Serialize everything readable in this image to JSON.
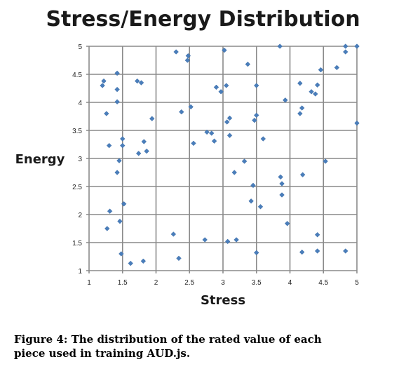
{
  "chart_data": {
    "type": "scatter",
    "title": "Stress/Energy Distribution",
    "xlabel": "Stress",
    "ylabel": "Energy",
    "xlim": [
      1,
      5
    ],
    "ylim": [
      1,
      5
    ],
    "x_ticks": [
      "1",
      "1.5",
      "2",
      "2.5",
      "3",
      "3.5",
      "4",
      "4.5",
      "5"
    ],
    "y_ticks": [
      "1",
      "1.5",
      "2",
      "2.5",
      "3",
      "3.5",
      "4",
      "4.5",
      "5"
    ],
    "grid": true,
    "legend": false,
    "marker_color": "#4a7ebb",
    "points": [
      [
        2.3,
        4.9
      ],
      [
        2.48,
        4.83
      ],
      [
        2.47,
        4.75
      ],
      [
        3.02,
        4.93
      ],
      [
        3.85,
        5.0
      ],
      [
        4.83,
        5.0
      ],
      [
        5.0,
        5.0
      ],
      [
        4.83,
        4.9
      ],
      [
        3.37,
        4.68
      ],
      [
        4.7,
        4.62
      ],
      [
        4.46,
        4.58
      ],
      [
        1.2,
        4.3
      ],
      [
        1.22,
        4.38
      ],
      [
        1.42,
        4.52
      ],
      [
        1.72,
        4.38
      ],
      [
        1.78,
        4.35
      ],
      [
        1.42,
        4.23
      ],
      [
        2.9,
        4.27
      ],
      [
        2.97,
        4.19
      ],
      [
        3.05,
        4.3
      ],
      [
        3.5,
        4.3
      ],
      [
        4.15,
        4.34
      ],
      [
        4.41,
        4.31
      ],
      [
        4.32,
        4.19
      ],
      [
        4.38,
        4.15
      ],
      [
        1.42,
        4.01
      ],
      [
        3.93,
        4.04
      ],
      [
        2.52,
        3.92
      ],
      [
        4.18,
        3.9
      ],
      [
        1.26,
        3.8
      ],
      [
        2.38,
        3.83
      ],
      [
        4.15,
        3.8
      ],
      [
        3.5,
        3.77
      ],
      [
        3.1,
        3.72
      ],
      [
        1.94,
        3.71
      ],
      [
        3.06,
        3.65
      ],
      [
        3.47,
        3.68
      ],
      [
        5.0,
        3.63
      ],
      [
        2.76,
        3.47
      ],
      [
        2.83,
        3.45
      ],
      [
        3.1,
        3.41
      ],
      [
        2.87,
        3.31
      ],
      [
        3.6,
        3.35
      ],
      [
        1.5,
        3.35
      ],
      [
        1.82,
        3.3
      ],
      [
        2.56,
        3.27
      ],
      [
        1.3,
        3.23
      ],
      [
        1.5,
        3.23
      ],
      [
        1.86,
        3.13
      ],
      [
        1.74,
        3.09
      ],
      [
        1.45,
        2.96
      ],
      [
        3.32,
        2.95
      ],
      [
        4.53,
        2.95
      ],
      [
        1.42,
        2.75
      ],
      [
        3.17,
        2.75
      ],
      [
        3.86,
        2.67
      ],
      [
        4.19,
        2.71
      ],
      [
        3.88,
        2.55
      ],
      [
        3.45,
        2.52
      ],
      [
        3.88,
        2.35
      ],
      [
        3.42,
        2.24
      ],
      [
        3.56,
        2.14
      ],
      [
        1.52,
        2.19
      ],
      [
        1.31,
        2.06
      ],
      [
        1.46,
        1.88
      ],
      [
        3.96,
        1.84
      ],
      [
        1.27,
        1.75
      ],
      [
        2.26,
        1.65
      ],
      [
        4.41,
        1.64
      ],
      [
        2.73,
        1.55
      ],
      [
        3.07,
        1.52
      ],
      [
        3.2,
        1.55
      ],
      [
        1.48,
        1.3
      ],
      [
        3.5,
        1.32
      ],
      [
        4.18,
        1.33
      ],
      [
        4.41,
        1.35
      ],
      [
        4.83,
        1.35
      ],
      [
        2.34,
        1.22
      ],
      [
        1.62,
        1.13
      ],
      [
        1.81,
        1.17
      ]
    ]
  },
  "caption": "Figure 4: The distribution of the rated value of each\npiece used in training AUD.js."
}
